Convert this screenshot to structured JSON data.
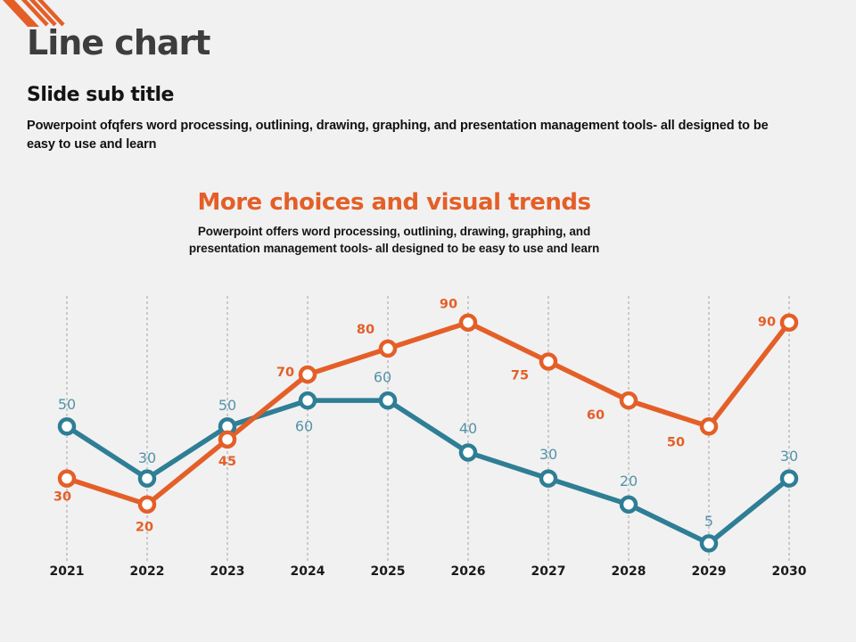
{
  "page": {
    "background": "#f1f1f1",
    "accent_orange": "#e45f28",
    "teal": "#2e7e95"
  },
  "header": {
    "title": "Line chart",
    "subtitle": "Slide sub title",
    "description": "Powerpoint ofqfers word processing, outlining, drawing, graphing, and presentation management tools- all designed to be easy to use and learn"
  },
  "chart_header": {
    "title": "More choices and visual trends",
    "subtitle": "Powerpoint offers word processing, outlining, drawing, graphing, and presentation management tools- all designed to be easy to use and learn"
  },
  "chart_data": {
    "type": "line",
    "title": "More choices and visual trends",
    "categories": [
      "2021",
      "2022",
      "2023",
      "2024",
      "2025",
      "2026",
      "2027",
      "2028",
      "2029",
      "2030"
    ],
    "series": [
      {
        "name": "teal-series",
        "color": "#2e7e95",
        "label_color": "#5494a9",
        "label_bold": false,
        "values": [
          50,
          30,
          50,
          60,
          60,
          40,
          30,
          20,
          5,
          30
        ],
        "label_offsets": [
          [
            0,
            -25
          ],
          [
            0,
            -23
          ],
          [
            0,
            -24
          ],
          [
            -4,
            29
          ],
          [
            -6,
            -26
          ],
          [
            0,
            -27
          ],
          [
            0,
            -27
          ],
          [
            0,
            -26
          ],
          [
            0,
            -25
          ],
          [
            0,
            -25
          ]
        ]
      },
      {
        "name": "orange-series",
        "color": "#e45f28",
        "label_color": "#e45f28",
        "label_bold": true,
        "values": [
          30,
          20,
          45,
          70,
          80,
          90,
          75,
          60,
          50,
          90
        ],
        "label_offsets": [
          [
            -5,
            21
          ],
          [
            -3,
            26
          ],
          [
            0,
            25
          ],
          [
            -25,
            -2
          ],
          [
            -25,
            -21
          ],
          [
            -22,
            -20
          ],
          [
            -32,
            16
          ],
          [
            -37,
            17
          ],
          [
            -37,
            18
          ],
          [
            -25,
            0
          ]
        ]
      }
    ],
    "ylim": [
      0,
      100
    ],
    "xlabel": "",
    "ylabel": "",
    "grid": "vertical-dashed",
    "grid_color": "#a3a3a3",
    "legend": "none",
    "year_label_color": "#1b1b1b"
  }
}
